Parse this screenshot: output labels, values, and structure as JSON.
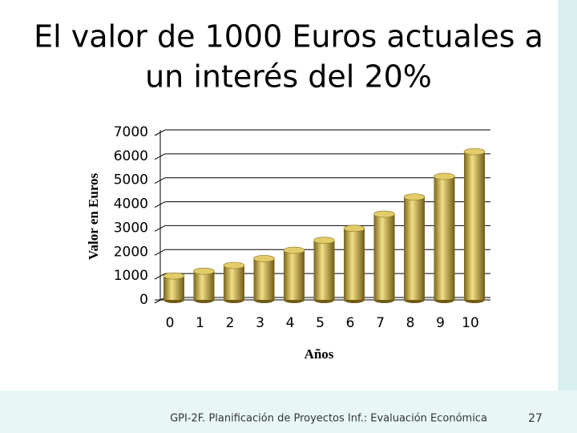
{
  "chart_data": {
    "type": "bar",
    "title": [
      "El valor de 1000 Euros actuales a",
      "un interés del 20%"
    ],
    "x_label": "Años",
    "y_label": "Valor en Euros",
    "categories": [
      "0",
      "1",
      "2",
      "3",
      "4",
      "5",
      "6",
      "7",
      "8",
      "9",
      "10"
    ],
    "values": [
      1000,
      1200,
      1440,
      1728,
      2074,
      2488,
      2986,
      3583,
      4300,
      5160,
      6192
    ],
    "color": "#c8a838",
    "ylim": [
      0,
      7000
    ],
    "yticks": [
      0,
      1000,
      2000,
      3000,
      4000,
      5000,
      6000,
      7000
    ],
    "grid": true
  },
  "footer": {
    "text": "GPI-2F. Planificación de Proyectos Inf.: Evaluación Económica",
    "page": 27
  }
}
